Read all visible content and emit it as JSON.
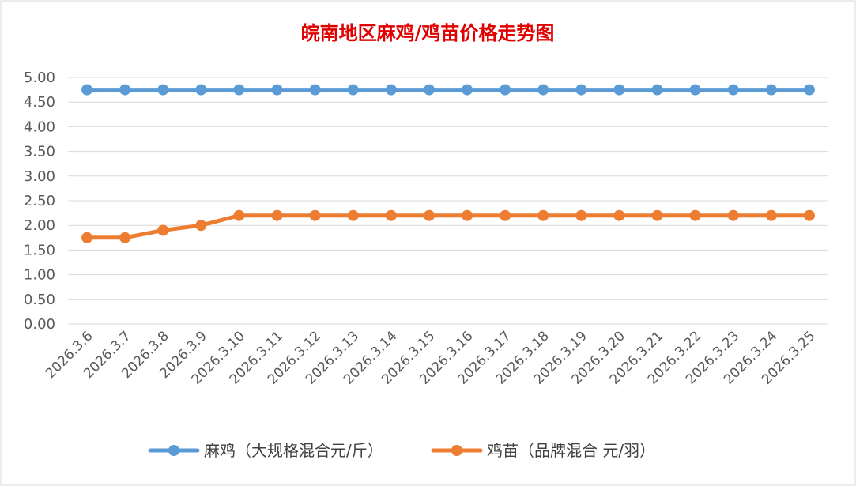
{
  "chart_data": {
    "type": "line",
    "title": "皖南地区麻鸡/鸡苗价格走势图",
    "categories": [
      "2026.3.6",
      "2026.3.7",
      "2026.3.8",
      "2026.3.9",
      "2026.3.10",
      "2026.3.11",
      "2026.3.12",
      "2026.3.13",
      "2026.3.14",
      "2026.3.15",
      "2026.3.16",
      "2026.3.17",
      "2026.3.18",
      "2026.3.19",
      "2026.3.20",
      "2026.3.21",
      "2026.3.22",
      "2026.3.23",
      "2026.3.24",
      "2026.3.25"
    ],
    "series": [
      {
        "name": "麻鸡（大规格混合元/斤）",
        "color": "#5b9bd5",
        "values": [
          4.75,
          4.75,
          4.75,
          4.75,
          4.75,
          4.75,
          4.75,
          4.75,
          4.75,
          4.75,
          4.75,
          4.75,
          4.75,
          4.75,
          4.75,
          4.75,
          4.75,
          4.75,
          4.75,
          4.75
        ]
      },
      {
        "name": "鸡苗（品牌混合 元/羽）",
        "color": "#ed7d31",
        "values": [
          1.75,
          1.75,
          1.9,
          2.0,
          2.2,
          2.2,
          2.2,
          2.2,
          2.2,
          2.2,
          2.2,
          2.2,
          2.2,
          2.2,
          2.2,
          2.2,
          2.2,
          2.2,
          2.2,
          2.2
        ]
      }
    ],
    "yticks": [
      "0.00",
      "0.50",
      "1.00",
      "1.50",
      "2.00",
      "2.50",
      "3.00",
      "3.50",
      "4.00",
      "4.50",
      "5.00"
    ],
    "ylim": [
      0,
      5
    ],
    "grid": true,
    "legend_position": "bottom"
  }
}
